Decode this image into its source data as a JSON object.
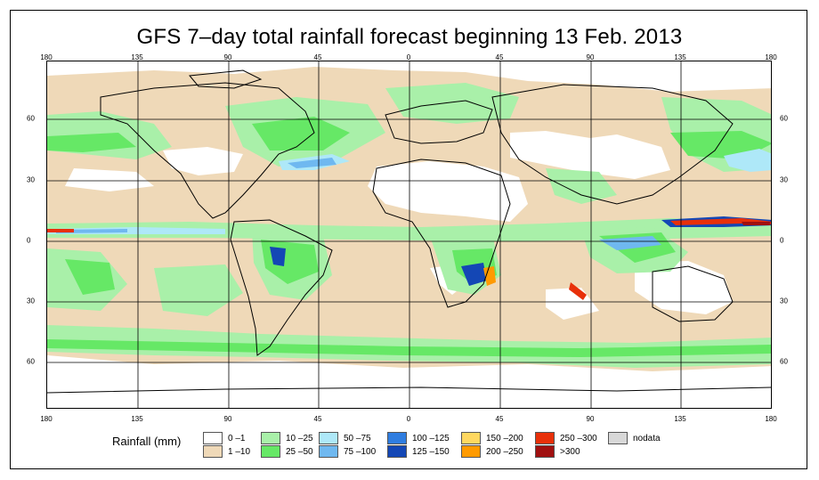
{
  "title": "GFS 7–day total rainfall forecast beginning 13 Feb. 2013",
  "axes": {
    "lon_top": [
      "180",
      "135",
      "90",
      "45",
      "0",
      "45",
      "90",
      "135",
      "180"
    ],
    "lon_bottom": [
      "180",
      "135",
      "90",
      "45",
      "0",
      "45",
      "90",
      "135",
      "180"
    ],
    "lat_left": [
      "60",
      "30",
      "0",
      "30",
      "60"
    ],
    "lat_right": [
      "60",
      "30",
      "0",
      "30",
      "60"
    ]
  },
  "legend": {
    "title": "Rainfall (mm)",
    "items": [
      {
        "label": "0 –1",
        "color": "#ffffff"
      },
      {
        "label": "1 –10",
        "color": "#efd9b8"
      },
      {
        "label": "10 –25",
        "color": "#a9f0a9"
      },
      {
        "label": "25 –50",
        "color": "#66e866"
      },
      {
        "label": "50 –75",
        "color": "#aee8f8"
      },
      {
        "label": "75 –100",
        "color": "#6fb8f0"
      },
      {
        "label": "100 –125",
        "color": "#2f7de0"
      },
      {
        "label": "125 –150",
        "color": "#1447b5"
      },
      {
        "label": "150 –200",
        "color": "#ffd860"
      },
      {
        "label": "200 –250",
        "color": "#ff9a00"
      },
      {
        "label": "250 –300",
        "color": "#e8300a"
      },
      {
        "label": ">300",
        "color": "#a01010"
      },
      {
        "label": "nodata",
        "color": "#d8d8d8"
      }
    ]
  }
}
